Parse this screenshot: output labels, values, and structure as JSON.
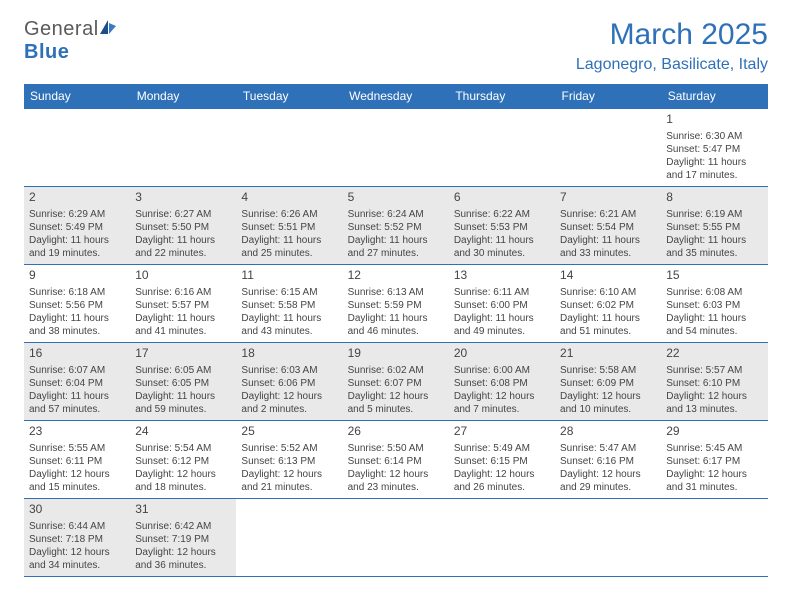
{
  "logo": {
    "text_general": "Genera",
    "text_l": "l",
    "text_blue": "Blue"
  },
  "title": "March 2025",
  "location": "Lagonegro, Basilicate, Italy",
  "colors": {
    "brand_blue": "#2f71b8",
    "header_text": "#ffffff",
    "body_text": "#454545",
    "gray_cell": "#e9e9e9",
    "border": "#2f71b8",
    "background": "#ffffff"
  },
  "typography": {
    "title_fontsize": 30,
    "location_fontsize": 16,
    "dayheader_fontsize": 12,
    "daynum_fontsize": 12,
    "cell_fontsize": 10
  },
  "day_headers": [
    "Sunday",
    "Monday",
    "Tuesday",
    "Wednesday",
    "Thursday",
    "Friday",
    "Saturday"
  ],
  "weeks": [
    [
      null,
      null,
      null,
      null,
      null,
      null,
      {
        "n": "1",
        "gray": false,
        "sunrise": "Sunrise: 6:30 AM",
        "sunset": "Sunset: 5:47 PM",
        "daylight1": "Daylight: 11 hours",
        "daylight2": "and 17 minutes."
      }
    ],
    [
      {
        "n": "2",
        "gray": true,
        "sunrise": "Sunrise: 6:29 AM",
        "sunset": "Sunset: 5:49 PM",
        "daylight1": "Daylight: 11 hours",
        "daylight2": "and 19 minutes."
      },
      {
        "n": "3",
        "gray": true,
        "sunrise": "Sunrise: 6:27 AM",
        "sunset": "Sunset: 5:50 PM",
        "daylight1": "Daylight: 11 hours",
        "daylight2": "and 22 minutes."
      },
      {
        "n": "4",
        "gray": true,
        "sunrise": "Sunrise: 6:26 AM",
        "sunset": "Sunset: 5:51 PM",
        "daylight1": "Daylight: 11 hours",
        "daylight2": "and 25 minutes."
      },
      {
        "n": "5",
        "gray": true,
        "sunrise": "Sunrise: 6:24 AM",
        "sunset": "Sunset: 5:52 PM",
        "daylight1": "Daylight: 11 hours",
        "daylight2": "and 27 minutes."
      },
      {
        "n": "6",
        "gray": true,
        "sunrise": "Sunrise: 6:22 AM",
        "sunset": "Sunset: 5:53 PM",
        "daylight1": "Daylight: 11 hours",
        "daylight2": "and 30 minutes."
      },
      {
        "n": "7",
        "gray": true,
        "sunrise": "Sunrise: 6:21 AM",
        "sunset": "Sunset: 5:54 PM",
        "daylight1": "Daylight: 11 hours",
        "daylight2": "and 33 minutes."
      },
      {
        "n": "8",
        "gray": true,
        "sunrise": "Sunrise: 6:19 AM",
        "sunset": "Sunset: 5:55 PM",
        "daylight1": "Daylight: 11 hours",
        "daylight2": "and 35 minutes."
      }
    ],
    [
      {
        "n": "9",
        "gray": false,
        "sunrise": "Sunrise: 6:18 AM",
        "sunset": "Sunset: 5:56 PM",
        "daylight1": "Daylight: 11 hours",
        "daylight2": "and 38 minutes."
      },
      {
        "n": "10",
        "gray": false,
        "sunrise": "Sunrise: 6:16 AM",
        "sunset": "Sunset: 5:57 PM",
        "daylight1": "Daylight: 11 hours",
        "daylight2": "and 41 minutes."
      },
      {
        "n": "11",
        "gray": false,
        "sunrise": "Sunrise: 6:15 AM",
        "sunset": "Sunset: 5:58 PM",
        "daylight1": "Daylight: 11 hours",
        "daylight2": "and 43 minutes."
      },
      {
        "n": "12",
        "gray": false,
        "sunrise": "Sunrise: 6:13 AM",
        "sunset": "Sunset: 5:59 PM",
        "daylight1": "Daylight: 11 hours",
        "daylight2": "and 46 minutes."
      },
      {
        "n": "13",
        "gray": false,
        "sunrise": "Sunrise: 6:11 AM",
        "sunset": "Sunset: 6:00 PM",
        "daylight1": "Daylight: 11 hours",
        "daylight2": "and 49 minutes."
      },
      {
        "n": "14",
        "gray": false,
        "sunrise": "Sunrise: 6:10 AM",
        "sunset": "Sunset: 6:02 PM",
        "daylight1": "Daylight: 11 hours",
        "daylight2": "and 51 minutes."
      },
      {
        "n": "15",
        "gray": false,
        "sunrise": "Sunrise: 6:08 AM",
        "sunset": "Sunset: 6:03 PM",
        "daylight1": "Daylight: 11 hours",
        "daylight2": "and 54 minutes."
      }
    ],
    [
      {
        "n": "16",
        "gray": true,
        "sunrise": "Sunrise: 6:07 AM",
        "sunset": "Sunset: 6:04 PM",
        "daylight1": "Daylight: 11 hours",
        "daylight2": "and 57 minutes."
      },
      {
        "n": "17",
        "gray": true,
        "sunrise": "Sunrise: 6:05 AM",
        "sunset": "Sunset: 6:05 PM",
        "daylight1": "Daylight: 11 hours",
        "daylight2": "and 59 minutes."
      },
      {
        "n": "18",
        "gray": true,
        "sunrise": "Sunrise: 6:03 AM",
        "sunset": "Sunset: 6:06 PM",
        "daylight1": "Daylight: 12 hours",
        "daylight2": "and 2 minutes."
      },
      {
        "n": "19",
        "gray": true,
        "sunrise": "Sunrise: 6:02 AM",
        "sunset": "Sunset: 6:07 PM",
        "daylight1": "Daylight: 12 hours",
        "daylight2": "and 5 minutes."
      },
      {
        "n": "20",
        "gray": true,
        "sunrise": "Sunrise: 6:00 AM",
        "sunset": "Sunset: 6:08 PM",
        "daylight1": "Daylight: 12 hours",
        "daylight2": "and 7 minutes."
      },
      {
        "n": "21",
        "gray": true,
        "sunrise": "Sunrise: 5:58 AM",
        "sunset": "Sunset: 6:09 PM",
        "daylight1": "Daylight: 12 hours",
        "daylight2": "and 10 minutes."
      },
      {
        "n": "22",
        "gray": true,
        "sunrise": "Sunrise: 5:57 AM",
        "sunset": "Sunset: 6:10 PM",
        "daylight1": "Daylight: 12 hours",
        "daylight2": "and 13 minutes."
      }
    ],
    [
      {
        "n": "23",
        "gray": false,
        "sunrise": "Sunrise: 5:55 AM",
        "sunset": "Sunset: 6:11 PM",
        "daylight1": "Daylight: 12 hours",
        "daylight2": "and 15 minutes."
      },
      {
        "n": "24",
        "gray": false,
        "sunrise": "Sunrise: 5:54 AM",
        "sunset": "Sunset: 6:12 PM",
        "daylight1": "Daylight: 12 hours",
        "daylight2": "and 18 minutes."
      },
      {
        "n": "25",
        "gray": false,
        "sunrise": "Sunrise: 5:52 AM",
        "sunset": "Sunset: 6:13 PM",
        "daylight1": "Daylight: 12 hours",
        "daylight2": "and 21 minutes."
      },
      {
        "n": "26",
        "gray": false,
        "sunrise": "Sunrise: 5:50 AM",
        "sunset": "Sunset: 6:14 PM",
        "daylight1": "Daylight: 12 hours",
        "daylight2": "and 23 minutes."
      },
      {
        "n": "27",
        "gray": false,
        "sunrise": "Sunrise: 5:49 AM",
        "sunset": "Sunset: 6:15 PM",
        "daylight1": "Daylight: 12 hours",
        "daylight2": "and 26 minutes."
      },
      {
        "n": "28",
        "gray": false,
        "sunrise": "Sunrise: 5:47 AM",
        "sunset": "Sunset: 6:16 PM",
        "daylight1": "Daylight: 12 hours",
        "daylight2": "and 29 minutes."
      },
      {
        "n": "29",
        "gray": false,
        "sunrise": "Sunrise: 5:45 AM",
        "sunset": "Sunset: 6:17 PM",
        "daylight1": "Daylight: 12 hours",
        "daylight2": "and 31 minutes."
      }
    ],
    [
      {
        "n": "30",
        "gray": true,
        "sunrise": "Sunrise: 6:44 AM",
        "sunset": "Sunset: 7:18 PM",
        "daylight1": "Daylight: 12 hours",
        "daylight2": "and 34 minutes."
      },
      {
        "n": "31",
        "gray": true,
        "sunrise": "Sunrise: 6:42 AM",
        "sunset": "Sunset: 7:19 PM",
        "daylight1": "Daylight: 12 hours",
        "daylight2": "and 36 minutes."
      },
      null,
      null,
      null,
      null,
      null
    ]
  ]
}
